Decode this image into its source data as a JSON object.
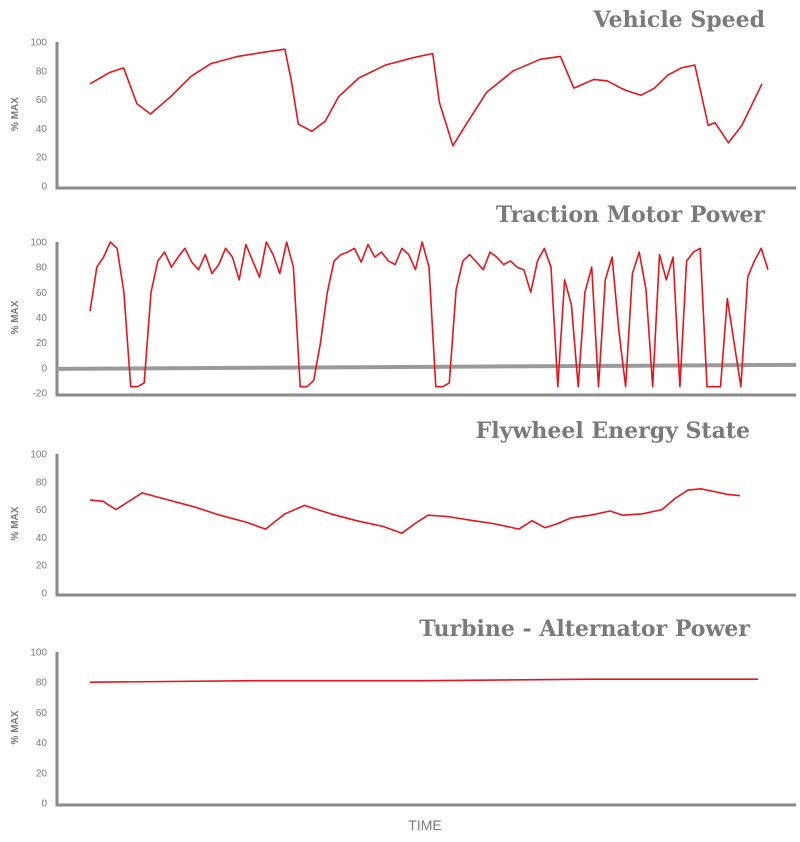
{
  "colors": {
    "series": "#e8141b",
    "axis": "#8a8a8a",
    "text": "#7a7a7a"
  },
  "xlabel": "TIME",
  "chart_data": [
    {
      "type": "line",
      "title": "Vehicle Speed",
      "ylabel": "% MAX",
      "ylim": [
        0,
        100
      ],
      "yticks": [
        0,
        20,
        40,
        60,
        80,
        100
      ],
      "xlim": [
        0,
        100
      ],
      "grid": false,
      "series": [
        {
          "x": [
            0,
            3,
            5,
            7,
            9,
            12,
            15,
            18,
            22,
            26,
            29,
            30,
            31,
            33,
            35,
            37,
            40,
            44,
            48,
            51,
            52,
            54,
            56,
            59,
            63,
            67,
            70,
            72,
            75,
            77,
            79,
            80,
            82,
            84,
            86,
            88,
            90,
            92,
            93,
            95,
            97,
            100
          ],
          "y": [
            71,
            79,
            82,
            57,
            50,
            62,
            76,
            85,
            90,
            93,
            95,
            72,
            43,
            38,
            45,
            62,
            75,
            84,
            89,
            92,
            58,
            28,
            43,
            65,
            80,
            88,
            90,
            68,
            74,
            73,
            68,
            66,
            63,
            68,
            77,
            82,
            84,
            42,
            44,
            30,
            42,
            71
          ]
        }
      ]
    },
    {
      "type": "line",
      "title": "Traction Motor Power",
      "ylabel": "% MAX",
      "ylim": [
        -20,
        100
      ],
      "yticks": [
        -20,
        0,
        20,
        40,
        60,
        80,
        100
      ],
      "xlim": [
        0,
        100
      ],
      "grid": false,
      "series": [
        {
          "x": [
            0,
            1,
            2,
            3,
            4,
            5,
            6,
            7,
            8,
            9,
            10,
            11,
            12,
            13,
            14,
            15,
            16,
            17,
            18,
            19,
            20,
            21,
            22,
            23,
            24,
            25,
            26,
            27,
            28,
            29,
            30,
            31,
            32,
            33,
            34,
            35,
            36,
            37,
            38,
            39,
            40,
            41,
            42,
            43,
            44,
            45,
            46,
            47,
            48,
            49,
            50,
            51,
            52,
            53,
            54,
            55,
            56,
            57,
            58,
            59,
            60,
            61,
            62,
            63,
            64,
            65,
            66,
            67,
            68,
            69,
            70,
            71,
            72,
            73,
            74,
            75,
            76,
            77,
            78,
            79,
            80,
            81,
            82,
            83,
            84,
            85,
            86,
            87,
            88,
            89,
            90,
            91,
            92,
            93,
            94,
            95,
            96,
            97,
            98,
            99,
            100
          ],
          "y": [
            45,
            80,
            88,
            100,
            95,
            60,
            -15,
            -15,
            -12,
            60,
            85,
            92,
            80,
            88,
            95,
            84,
            78,
            90,
            75,
            82,
            95,
            88,
            70,
            98,
            85,
            72,
            100,
            90,
            75,
            100,
            80,
            -15,
            -15,
            -10,
            20,
            60,
            85,
            90,
            92,
            95,
            84,
            98,
            88,
            92,
            85,
            82,
            95,
            90,
            78,
            100,
            80,
            -15,
            -15,
            -12,
            62,
            85,
            90,
            84,
            78,
            92,
            88,
            82,
            85,
            80,
            78,
            60,
            85,
            95,
            80,
            -15,
            70,
            50,
            -15,
            60,
            80,
            -15,
            70,
            88,
            30,
            -15,
            75,
            92,
            62,
            -15,
            90,
            70,
            88,
            -15,
            85,
            92,
            95,
            -15,
            -15,
            -15,
            55,
            20,
            -15,
            72,
            85,
            95,
            78
          ]
        }
      ]
    },
    {
      "type": "line",
      "title": "Flywheel Energy State",
      "ylabel": "% MAX",
      "ylim": [
        0,
        100
      ],
      "yticks": [
        0,
        20,
        40,
        60,
        80,
        100
      ],
      "xlim": [
        0,
        100
      ],
      "grid": false,
      "series": [
        {
          "x": [
            0,
            2,
            4,
            8,
            12,
            16,
            20,
            24,
            27,
            30,
            33,
            37,
            41,
            45,
            48,
            50,
            52,
            55,
            59,
            62,
            66,
            68,
            70,
            72,
            74,
            77,
            80,
            82,
            85,
            88,
            90,
            92,
            94,
            96,
            98,
            100
          ],
          "y": [
            67,
            66,
            60,
            72,
            67,
            62,
            56,
            51,
            46,
            57,
            63,
            57,
            52,
            48,
            43,
            50,
            56,
            55,
            52,
            50,
            46,
            52,
            47,
            50,
            54,
            56,
            59,
            56,
            57,
            60,
            68,
            74,
            75,
            73,
            71,
            70
          ]
        }
      ]
    },
    {
      "type": "line",
      "title": "Turbine - Alternator Power",
      "ylabel": "% MAX",
      "ylim": [
        0,
        100
      ],
      "yticks": [
        0,
        20,
        40,
        60,
        80,
        100
      ],
      "xlim": [
        0,
        100
      ],
      "grid": false,
      "series": [
        {
          "x": [
            0,
            25,
            50,
            75,
            100
          ],
          "y": [
            80,
            81,
            81,
            82,
            82
          ]
        }
      ]
    }
  ]
}
